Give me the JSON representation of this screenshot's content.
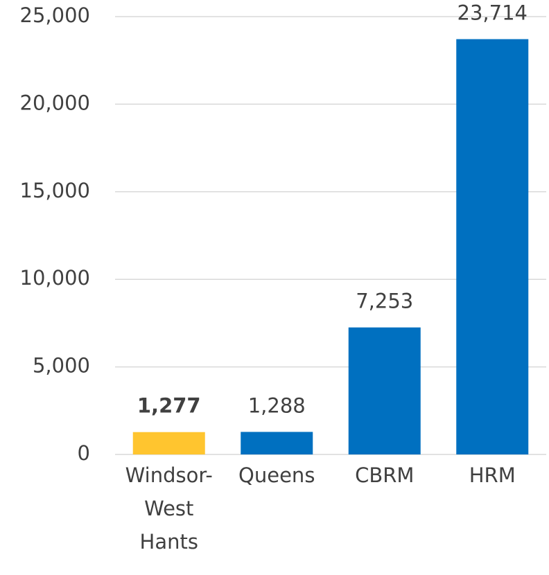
{
  "chart_data": {
    "type": "bar",
    "categories": [
      "Windsor-West Hants",
      "Queens",
      "CBRM",
      "HRM"
    ],
    "values": [
      1277,
      1288,
      7253,
      23714
    ],
    "value_labels": [
      "1,277",
      "1,288",
      "7,253",
      "23,714"
    ],
    "value_label_bold": [
      true,
      false,
      false,
      false
    ],
    "colors": [
      "#ffc52f",
      "#0070c0",
      "#0070c0",
      "#0070c0"
    ],
    "ylim": [
      0,
      25000
    ],
    "yticks": [
      0,
      {
        "value": 5000,
        "label": "5,000"
      },
      {
        "value": 10000,
        "label": "10,000"
      },
      {
        "value": 15000,
        "label": "15,000"
      },
      {
        "value": 20000,
        "label": "20,000"
      },
      {
        "value": 25000,
        "label": "25,000"
      }
    ],
    "grid": true
  }
}
